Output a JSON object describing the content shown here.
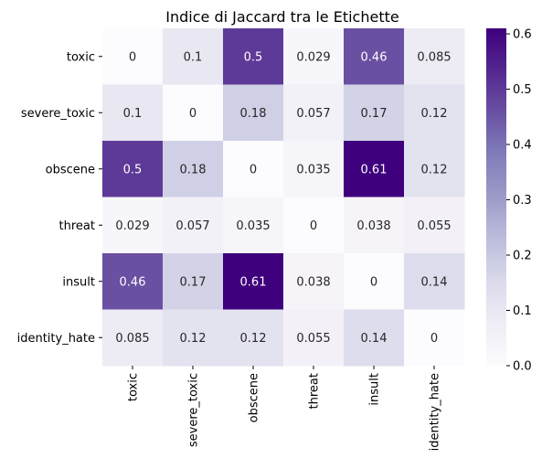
{
  "chart_data": {
    "type": "heatmap",
    "title": "Indice di Jaccard tra le Etichette",
    "xlabel": "",
    "ylabel": "",
    "row_labels": [
      "toxic",
      "severe_toxic",
      "obscene",
      "threat",
      "insult",
      "identity_hate"
    ],
    "col_labels": [
      "toxic",
      "severe_toxic",
      "obscene",
      "threat",
      "insult",
      "identity_hate"
    ],
    "values": [
      [
        0,
        0.1,
        0.5,
        0.029,
        0.46,
        0.085
      ],
      [
        0.1,
        0,
        0.18,
        0.057,
        0.17,
        0.12
      ],
      [
        0.5,
        0.18,
        0,
        0.035,
        0.61,
        0.12
      ],
      [
        0.029,
        0.057,
        0.035,
        0,
        0.038,
        0.055
      ],
      [
        0.46,
        0.17,
        0.61,
        0.038,
        0,
        0.14
      ],
      [
        0.085,
        0.12,
        0.12,
        0.055,
        0.14,
        0
      ]
    ],
    "annotations": [
      [
        "0",
        "0.1",
        "0.5",
        "0.029",
        "0.46",
        "0.085"
      ],
      [
        "0.1",
        "0",
        "0.18",
        "0.057",
        "0.17",
        "0.12"
      ],
      [
        "0.5",
        "0.18",
        "0",
        "0.035",
        "0.61",
        "0.12"
      ],
      [
        "0.029",
        "0.057",
        "0.035",
        "0",
        "0.038",
        "0.055"
      ],
      [
        "0.46",
        "0.17",
        "0.61",
        "0.038",
        "0",
        "0.14"
      ],
      [
        "0.085",
        "0.12",
        "0.12",
        "0.055",
        "0.14",
        "0"
      ]
    ],
    "colormap": "Purples",
    "colorbar": {
      "range": [
        0,
        0.61
      ],
      "ticks": [
        0,
        0.1,
        0.2,
        0.3,
        0.4,
        0.5,
        0.6
      ],
      "tick_labels": [
        "0.0",
        "0.1",
        "0.2",
        "0.3",
        "0.4",
        "0.5",
        "0.6"
      ]
    }
  }
}
